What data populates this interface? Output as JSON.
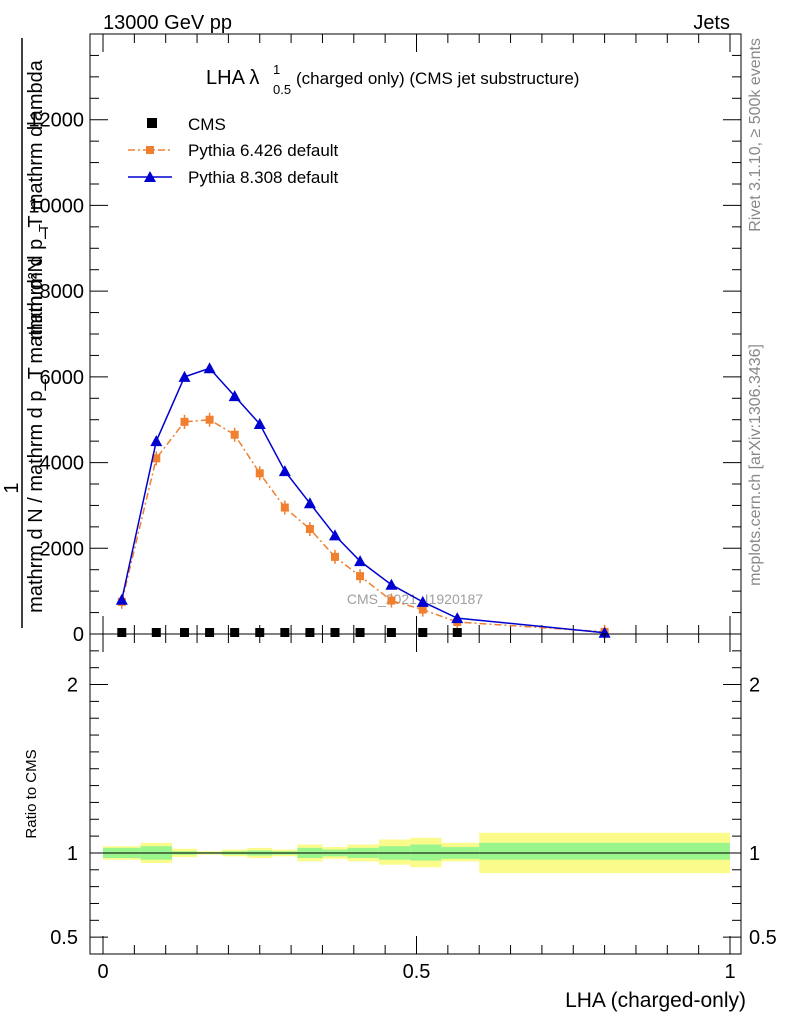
{
  "header": {
    "left": "13000 GeV pp",
    "right": "Jets"
  },
  "side_labels": {
    "rivet": "Rivet 3.1.10, ≥ 500k events",
    "mcplots": "mcplots.cern.ch [arXiv:1306.3436]"
  },
  "watermark": "CMS_2021_I1920187",
  "colors": {
    "cms": "#000000",
    "py6": "#f08030",
    "py8": "#0000d0",
    "band_inner": "#99f58c",
    "band_outer": "#fbfb8c"
  },
  "chart_data": [
    {
      "type": "line",
      "title_main": "LHA λ",
      "title_sup": "1",
      "title_sub": "0.5",
      "title_rest": " (charged only) (CMS jet substructure)",
      "ylabel_numerator": "mathrm d²N",
      "ylabel_numerator_extra": "mathrm d p_T mathrm dlambda",
      "ylabel_prefix": "1",
      "ylabel_denominator": "mathrm d N / mathrm d p_T",
      "ylabel_sub": "T",
      "xlim": [
        0,
        1
      ],
      "ylim": [
        0,
        14000
      ],
      "yticks": [
        0,
        2000,
        4000,
        6000,
        8000,
        10000,
        12000
      ],
      "ytick_labels": [
        "0",
        "2000",
        "4000",
        "6000",
        "8000",
        "10000",
        "12000"
      ],
      "x": [
        0.03,
        0.085,
        0.13,
        0.17,
        0.21,
        0.25,
        0.29,
        0.33,
        0.37,
        0.41,
        0.46,
        0.51,
        0.565,
        0.8
      ],
      "series": [
        {
          "name": "CMS",
          "style": "marker",
          "x": [
            0.03,
            0.085,
            0.13,
            0.17,
            0.21,
            0.25,
            0.29,
            0.33,
            0.37,
            0.41,
            0.46,
            0.51,
            0.565
          ],
          "values": [
            0,
            0,
            0,
            0,
            0,
            0,
            0,
            0,
            0,
            0,
            0,
            0,
            0
          ]
        },
        {
          "name": "Pythia 6.426 default",
          "style": "dashdot-square",
          "values": [
            750,
            4100,
            4950,
            5000,
            4650,
            3750,
            2950,
            2450,
            1800,
            1350,
            780,
            570,
            280,
            50
          ]
        },
        {
          "name": "Pythia 8.308 default",
          "style": "solid-triangle",
          "values": [
            800,
            4500,
            6000,
            6200,
            5550,
            4900,
            3800,
            3050,
            2300,
            1700,
            1150,
            750,
            370,
            30
          ]
        }
      ]
    },
    {
      "type": "area",
      "ylabel": "Ratio to CMS",
      "xlabel": "LHA (charged-only)",
      "xlim": [
        0,
        1
      ],
      "ylim": [
        0.4,
        2.3
      ],
      "xticks": [
        0,
        0.5,
        1
      ],
      "xtick_labels": [
        "0",
        "0.5",
        "1"
      ],
      "yticks": [
        0.5,
        1,
        2
      ],
      "ytick_labels": [
        "0.5",
        "1",
        "2"
      ],
      "bins": [
        [
          0,
          0.06
        ],
        [
          0.06,
          0.11
        ],
        [
          0.11,
          0.15
        ],
        [
          0.15,
          0.19
        ],
        [
          0.19,
          0.23
        ],
        [
          0.23,
          0.27
        ],
        [
          0.27,
          0.31
        ],
        [
          0.31,
          0.35
        ],
        [
          0.35,
          0.39
        ],
        [
          0.39,
          0.44
        ],
        [
          0.44,
          0.49
        ],
        [
          0.49,
          0.54
        ],
        [
          0.54,
          0.6
        ],
        [
          0.6,
          1.0
        ]
      ],
      "band_inner": [
        [
          0.97,
          1.03
        ],
        [
          0.96,
          1.04
        ],
        [
          0.99,
          1.01
        ],
        [
          0.995,
          1.005
        ],
        [
          0.99,
          1.01
        ],
        [
          0.985,
          1.015
        ],
        [
          0.99,
          1.01
        ],
        [
          0.97,
          1.03
        ],
        [
          0.98,
          1.02
        ],
        [
          0.97,
          1.03
        ],
        [
          0.96,
          1.04
        ],
        [
          0.955,
          1.05
        ],
        [
          0.965,
          1.035
        ],
        [
          0.96,
          1.06
        ]
      ],
      "band_outer": [
        [
          0.96,
          1.04
        ],
        [
          0.94,
          1.06
        ],
        [
          0.975,
          1.025
        ],
        [
          0.99,
          1.01
        ],
        [
          0.98,
          1.02
        ],
        [
          0.97,
          1.03
        ],
        [
          0.98,
          1.02
        ],
        [
          0.95,
          1.05
        ],
        [
          0.965,
          1.035
        ],
        [
          0.95,
          1.05
        ],
        [
          0.93,
          1.08
        ],
        [
          0.915,
          1.09
        ],
        [
          0.95,
          1.06
        ],
        [
          0.88,
          1.12
        ]
      ]
    }
  ]
}
